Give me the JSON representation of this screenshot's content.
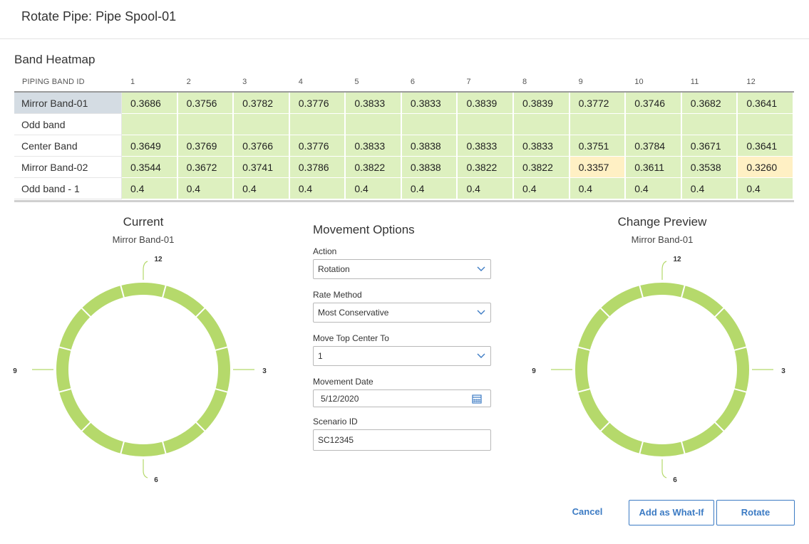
{
  "dialog": {
    "title": "Rotate Pipe: Pipe Spool-01"
  },
  "heatmap": {
    "title": "Band Heatmap",
    "id_header": "PIPING BAND ID",
    "columns": [
      "1",
      "2",
      "3",
      "4",
      "5",
      "6",
      "7",
      "8",
      "9",
      "10",
      "11",
      "12"
    ],
    "rows": [
      {
        "label": "Mirror Band-01",
        "values": [
          "0.3686",
          "0.3756",
          "0.3782",
          "0.3776",
          "0.3833",
          "0.3833",
          "0.3839",
          "0.3839",
          "0.3772",
          "0.3746",
          "0.3682",
          "0.3641"
        ],
        "selected": true,
        "warn": []
      },
      {
        "label": "Odd band",
        "values": [
          "",
          "",
          "",
          "",
          "",
          "",
          "",
          "",
          "",
          "",
          "",
          ""
        ],
        "selected": false,
        "warn": []
      },
      {
        "label": "Center Band",
        "values": [
          "0.3649",
          "0.3769",
          "0.3766",
          "0.3776",
          "0.3833",
          "0.3838",
          "0.3833",
          "0.3833",
          "0.3751",
          "0.3784",
          "0.3671",
          "0.3641"
        ],
        "selected": false,
        "warn": []
      },
      {
        "label": "Mirror Band-02",
        "values": [
          "0.3544",
          "0.3672",
          "0.3741",
          "0.3786",
          "0.3822",
          "0.3838",
          "0.3822",
          "0.3822",
          "0.3357",
          "0.3611",
          "0.3538",
          "0.3260"
        ],
        "selected": false,
        "warn": [
          8,
          11
        ]
      },
      {
        "label": "Odd band - 1",
        "values": [
          "0.4",
          "0.4",
          "0.4",
          "0.4",
          "0.4",
          "0.4",
          "0.4",
          "0.4",
          "0.4",
          "0.4",
          "0.4",
          "0.4"
        ],
        "selected": false,
        "warn": []
      }
    ],
    "colors": {
      "ok": "#ddf0bf",
      "warn": "#fff0c4",
      "selected": "#d4dce3"
    }
  },
  "current": {
    "title": "Current",
    "band": "Mirror Band-01",
    "labels": {
      "top": "12",
      "right": "3",
      "bottom": "6",
      "left": "9"
    }
  },
  "preview": {
    "title": "Change Preview",
    "band": "Mirror Band-01",
    "labels": {
      "top": "12",
      "right": "3",
      "bottom": "6",
      "left": "9"
    }
  },
  "ring": {
    "segments": 12,
    "color": "#b5d96b"
  },
  "movement": {
    "title": "Movement Options",
    "action": {
      "label": "Action",
      "value": "Rotation"
    },
    "rate_method": {
      "label": "Rate Method",
      "value": "Most Conservative"
    },
    "move_top": {
      "label": "Move Top Center To",
      "value": "1"
    },
    "movement_date": {
      "label": "Movement Date",
      "value": "5/12/2020"
    },
    "scenario": {
      "label": "Scenario ID",
      "value": "SC12345"
    }
  },
  "buttons": {
    "cancel": "Cancel",
    "what_if": "Add as What-If",
    "rotate": "Rotate"
  },
  "accent": "#3c7bc4"
}
